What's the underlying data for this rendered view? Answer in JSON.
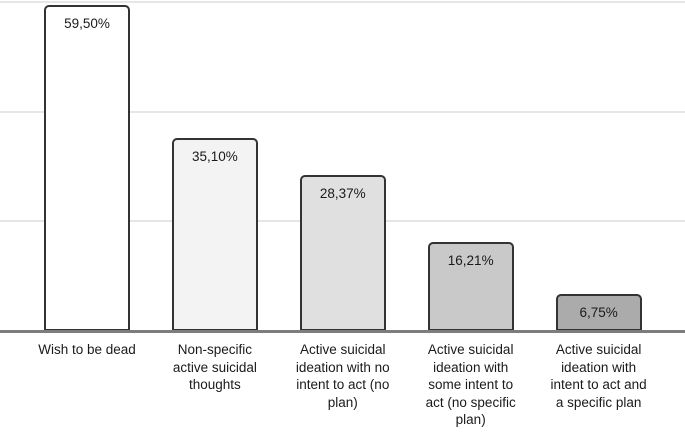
{
  "chart_data": {
    "type": "bar",
    "title": "",
    "xlabel": "",
    "ylabel": "",
    "categories": [
      "Wish to be dead",
      "Non-specific active suicidal thoughts",
      "Active suicidal ideation with no intent to act (no plan)",
      "Active suicidal ideation with some intent to act (no specific plan)",
      "Active suicidal ideation with intent to act and a specific plan"
    ],
    "category_lines": [
      [
        "Wish to be dead"
      ],
      [
        "Non-specific",
        "active suicidal",
        "thoughts"
      ],
      [
        "Active suicidal",
        "ideation with no",
        "intent to act (no",
        "plan)"
      ],
      [
        "Active suicidal",
        "ideation with",
        "some intent to",
        "act (no specific",
        "plan)"
      ],
      [
        "Active suicidal",
        "ideation with",
        "intent to act and",
        "a specific plan"
      ]
    ],
    "values": [
      59.5,
      35.1,
      28.37,
      16.21,
      6.75
    ],
    "value_labels": [
      "59,50%",
      "35,10%",
      "28,37%",
      "16,21%",
      "6,75%"
    ],
    "bar_colors": [
      "#ffffff",
      "#f3f3f3",
      "#e0e0e0",
      "#c9c9c9",
      "#ababab"
    ],
    "bar_border_color": "#333333",
    "gridline_percents": [
      60,
      40,
      20
    ],
    "gridline_color": "#e6e6e6",
    "axis_color": "#7d7d7d",
    "ylim": [
      0,
      60
    ],
    "grid": true,
    "legend": "none"
  }
}
